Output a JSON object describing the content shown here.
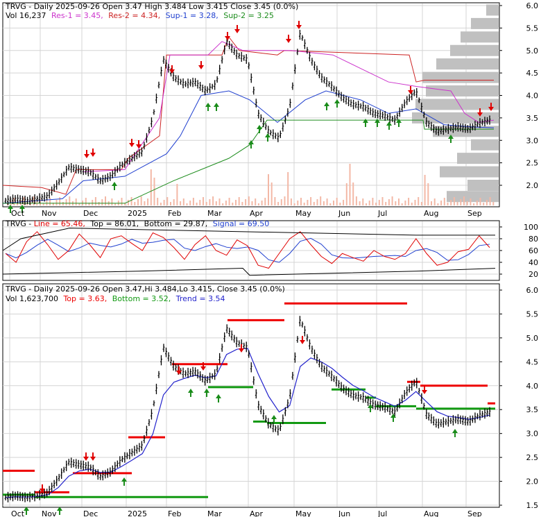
{
  "colors": {
    "price": "#000000",
    "up_arrow": "#1a8c1a",
    "down_arrow": "#e00000",
    "res1": "#cc33cc",
    "res2": "#cc2222",
    "sup1": "#1f3fcf",
    "sup2": "#1c8c1c",
    "volume": "#f3b8a6",
    "profile": "#c0c0c0",
    "line": "#e00000",
    "signal": "#1f3fcf",
    "topbottom": "#000000",
    "trend": "#2222cc",
    "top_level": "#ee0000",
    "bottom_level": "#119911",
    "grid": "#d4d4d4"
  },
  "x_labels": [
    "Oct",
    "Nov",
    "Dec",
    "2025",
    "Feb",
    "Mar",
    "Apr",
    "May",
    "Jun",
    "Jul",
    "Aug",
    "Sep"
  ],
  "panel1": {
    "legend": [
      {
        "text": "TRVG - Daily 2025-09-26 Open 3.47  High 3.484  Low 3.415  Close 3.45 (0.0%)",
        "color": "#000000"
      },
      {
        "text": "Vol 16,237",
        "color": "#000000"
      },
      {
        "text": "Res-1 = 3.45,",
        "color": "#cc33cc"
      },
      {
        "text": "Res-2 = 4.34,",
        "color": "#cc2222"
      },
      {
        "text": "Sup-1 = 3.28,",
        "color": "#1f3fcf"
      },
      {
        "text": "Sup-2 = 3.25",
        "color": "#1c8c1c"
      }
    ],
    "y_ticks": [
      "6.0",
      "5.5",
      "5.0",
      "4.5",
      "4.0",
      "3.5",
      "3.0",
      "2.5",
      "2.0"
    ]
  },
  "panel2": {
    "legend": [
      {
        "text": "TRVG - ",
        "color": "#000000"
      },
      {
        "text": "Line = 65.46,",
        "color": "#e00000"
      },
      {
        "text": "Top = 86.01,",
        "color": "#000000"
      },
      {
        "text": "Bottom = 29.87,",
        "color": "#000000"
      },
      {
        "text": "Signal = 69.50",
        "color": "#1f3fcf"
      }
    ],
    "y_ticks": [
      "100",
      "80",
      "60",
      "40",
      "20"
    ]
  },
  "panel3": {
    "legend": [
      {
        "text": "TRVG - Daily 2025-09-26 Open 3.47,Hi 3.484,Lo 3.415, Close 3.45 (0.0%)",
        "color": "#000000"
      },
      {
        "text": "Vol 1,623,700",
        "color": "#000000"
      },
      {
        "text": "Top = 3.63,",
        "color": "#ee0000"
      },
      {
        "text": "Bottom = 3.52,",
        "color": "#119911"
      },
      {
        "text": "Trend = 3.54",
        "color": "#2222cc"
      }
    ],
    "y_ticks": [
      "6.0",
      "5.5",
      "5.0",
      "4.5",
      "4.0",
      "3.5",
      "3.0",
      "2.5",
      "2.0",
      "1.5"
    ]
  },
  "chart_data": {
    "type": "line",
    "title": "TRVG - Daily 2025-09-26",
    "ohlc_last": {
      "open": 3.47,
      "high": 3.484,
      "low": 3.415,
      "close": 3.45,
      "change": "0.0%"
    },
    "x_months": [
      "Oct",
      "Nov",
      "Dec",
      "2025",
      "Feb",
      "Mar",
      "Apr",
      "May",
      "Jun",
      "Jul",
      "Aug",
      "Sep"
    ],
    "close_weekly": [
      1.66,
      1.7,
      1.66,
      1.7,
      1.76,
      2.05,
      2.4,
      2.35,
      2.3,
      2.1,
      2.2,
      2.45,
      2.6,
      2.75,
      3.5,
      4.8,
      4.4,
      4.25,
      4.3,
      4.1,
      4.25,
      5.2,
      4.9,
      4.8,
      3.6,
      3.2,
      3.05,
      3.75,
      5.4,
      4.8,
      4.4,
      4.2,
      3.95,
      3.8,
      3.75,
      3.6,
      3.55,
      3.45,
      3.85,
      4.1,
      3.4,
      3.2,
      3.25,
      3.3,
      3.25,
      3.38,
      3.45
    ],
    "support_resistance": {
      "res1": 3.45,
      "res2": 4.34,
      "sup1": 3.28,
      "sup2": 3.25
    },
    "stochastic": {
      "line": 65.46,
      "top": 86.01,
      "bottom": 29.87,
      "signal": 69.5,
      "ylim": [
        0,
        100
      ]
    },
    "trend_levels": {
      "top": 3.63,
      "bottom": 3.52,
      "trend": 3.54
    },
    "volume_last": "1,623,700",
    "ylim_price": [
      1.5,
      6.0
    ]
  }
}
